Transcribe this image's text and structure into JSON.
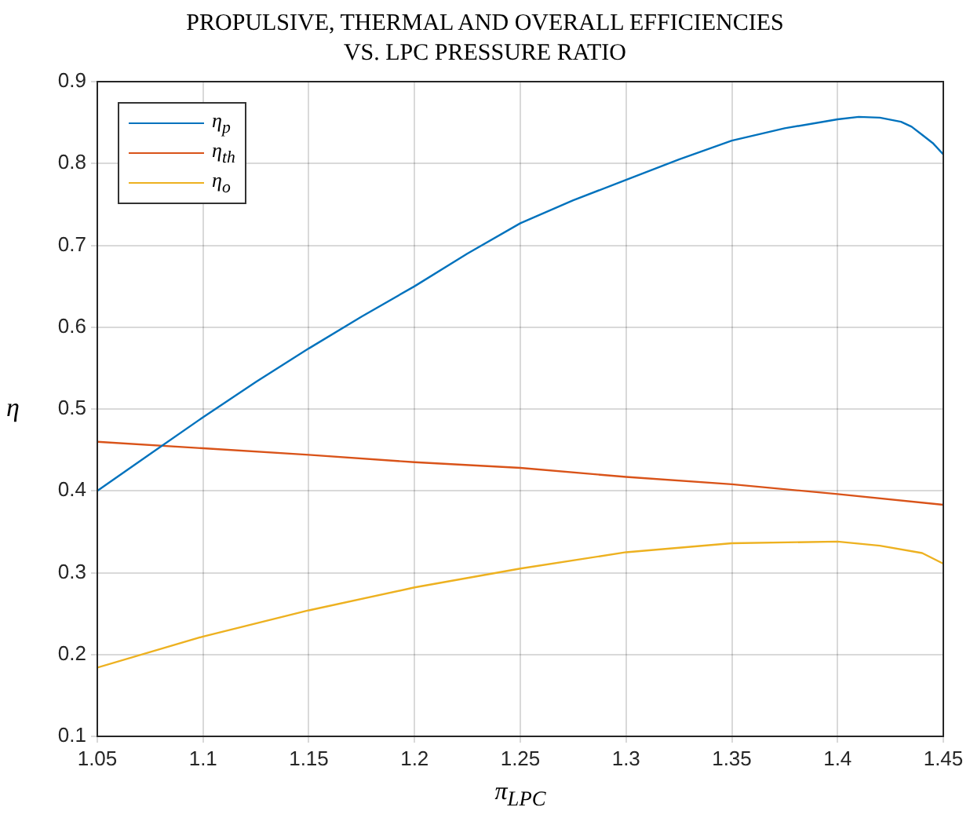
{
  "chart_data": {
    "type": "line",
    "title": "PROPULSIVE, THERMAL AND OVERALL EFFICIENCIES\nVS. LPC PRESSURE RATIO",
    "xlabel": "π$_{LPC}$",
    "ylabel": "η",
    "xlim": [
      1.05,
      1.45
    ],
    "xticks": [
      1.05,
      1.1,
      1.15,
      1.2,
      1.25,
      1.3,
      1.35,
      1.4,
      1.45
    ],
    "ylim": [
      0.1,
      0.9
    ],
    "yticks": [
      0.1,
      0.2,
      0.3,
      0.4,
      0.5,
      0.6,
      0.7,
      0.8,
      0.9
    ],
    "grid": true,
    "legend": "top left",
    "marker": "none",
    "line_style": "solid",
    "series": [
      {
        "name": "η$_{p}$",
        "color": "#0072bd",
        "x": [
          1.05,
          1.075,
          1.1,
          1.125,
          1.15,
          1.175,
          1.2,
          1.225,
          1.25,
          1.275,
          1.3,
          1.325,
          1.35,
          1.375,
          1.4,
          1.41,
          1.42,
          1.43,
          1.435,
          1.44,
          1.445,
          1.45
        ],
        "values": [
          0.4,
          0.445,
          0.49,
          0.533,
          0.574,
          0.613,
          0.65,
          0.69,
          0.727,
          0.755,
          0.78,
          0.805,
          0.828,
          0.843,
          0.854,
          0.857,
          0.856,
          0.851,
          0.845,
          0.835,
          0.825,
          0.811
        ]
      },
      {
        "name": "η$_{th}$",
        "color": "#d95319",
        "x": [
          1.05,
          1.1,
          1.15,
          1.2,
          1.25,
          1.3,
          1.35,
          1.4,
          1.45
        ],
        "values": [
          0.46,
          0.452,
          0.444,
          0.435,
          0.428,
          0.417,
          0.408,
          0.396,
          0.383
        ]
      },
      {
        "name": "η$_{o}$",
        "color": "#edb120",
        "x": [
          1.05,
          1.1,
          1.15,
          1.2,
          1.25,
          1.3,
          1.35,
          1.4,
          1.42,
          1.44,
          1.45
        ],
        "values": [
          0.184,
          0.222,
          0.254,
          0.282,
          0.305,
          0.325,
          0.336,
          0.338,
          0.333,
          0.324,
          0.311
        ]
      }
    ]
  }
}
